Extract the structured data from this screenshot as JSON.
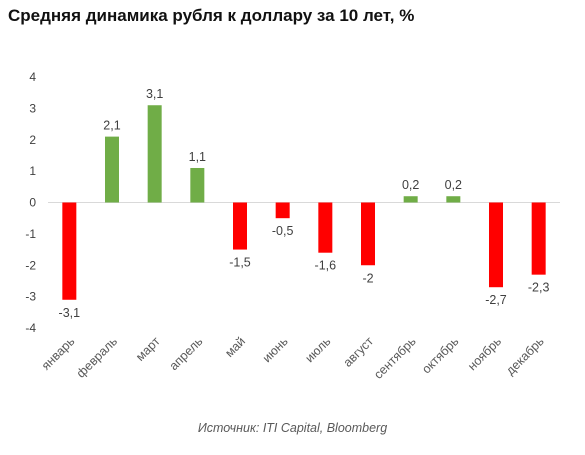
{
  "chart_data": {
    "type": "bar",
    "title": "Средняя динамика рубля к доллару за 10 лет, %",
    "source": "Источник: ITI Capital, Bloomberg",
    "categories": [
      "январь",
      "февраль",
      "март",
      "апрель",
      "май",
      "июнь",
      "июль",
      "август",
      "сентябрь",
      "октябрь",
      "ноябрь",
      "декабрь"
    ],
    "values": [
      -3.1,
      2.1,
      3.1,
      1.1,
      -1.5,
      -0.5,
      -1.6,
      -2,
      0.2,
      0.2,
      -2.7,
      -2.3
    ],
    "value_labels": [
      "-3,1",
      "2,1",
      "3,1",
      "1,1",
      "-1,5",
      "-0,5",
      "-1,6",
      "-2",
      "0,2",
      "0,2",
      "-2,7",
      "-2,3"
    ],
    "ylim": [
      -4,
      4
    ],
    "yticks": [
      4,
      3,
      2,
      1,
      0,
      -1,
      -2,
      -3,
      -4
    ],
    "grid": false,
    "legend": "none",
    "colors": {
      "positive": "#70AD47",
      "negative": "#FF0000",
      "zero_line": "#D9D9D9"
    }
  }
}
